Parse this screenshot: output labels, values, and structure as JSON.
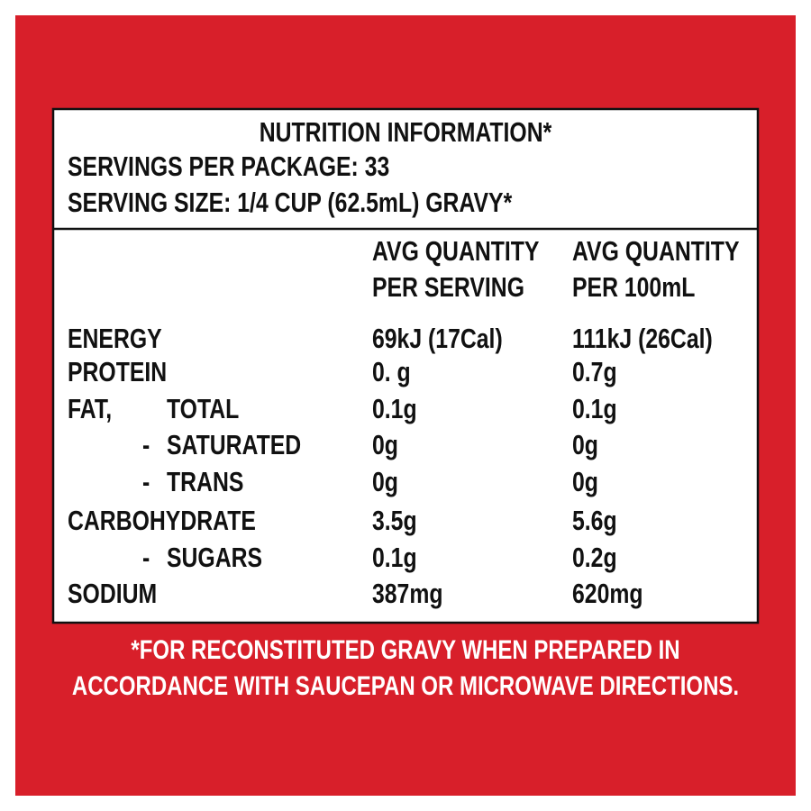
{
  "header": {
    "title": "NUTRITION INFORMATION*",
    "servings": "SERVINGS PER PACKAGE: 33",
    "serving_size": "SERVING SIZE: 1/4 CUP (62.5mL) GRAVY*"
  },
  "table": {
    "columns": [
      [
        "AVG QUANTITY",
        "PER SERVING"
      ],
      [
        "AVG QUANTITY",
        "PER 100mL"
      ]
    ],
    "rows": [
      {
        "label": "ENERGY",
        "values": [
          "69kJ (17Cal)",
          "111kJ (26Cal)"
        ]
      },
      {
        "label": "PROTEIN",
        "values": [
          "0. g",
          "0.7g"
        ]
      },
      {
        "label": "FAT,",
        "sub": "TOTAL",
        "values": [
          "0.1g",
          "0.1g"
        ]
      },
      {
        "dash": "-",
        "sub": "SATURATED",
        "values": [
          "0g",
          "0g"
        ]
      },
      {
        "dash": "-",
        "sub": "TRANS",
        "values": [
          "0g",
          "0g"
        ]
      },
      {
        "label": "CARBOHYDRATE",
        "values": [
          "3.5g",
          "5.6g"
        ]
      },
      {
        "dash": "-",
        "sub": "SUGARS",
        "values": [
          "0.1g",
          "0.2g"
        ]
      },
      {
        "label": "SODIUM",
        "values": [
          "387mg",
          "620mg"
        ]
      }
    ]
  },
  "footnote": [
    "*FOR RECONSTITUTED GRAVY WHEN PREPARED IN",
    "ACCORDANCE WITH SAUCEPAN OR MICROWAVE DIRECTIONS."
  ]
}
